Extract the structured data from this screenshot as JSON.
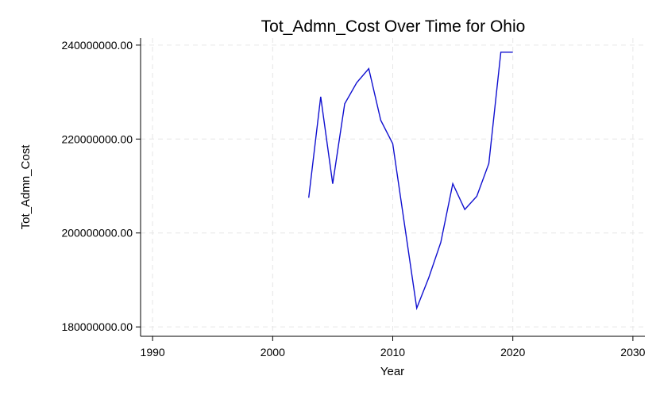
{
  "chart_data": {
    "type": "line",
    "title": "Tot_Admn_Cost Over Time for Ohio",
    "xlabel": "Year",
    "ylabel": "Tot_Admn_Cost",
    "xlim": [
      1989,
      2031
    ],
    "ylim": [
      178000000,
      241500000
    ],
    "xticks": [
      1990,
      2000,
      2010,
      2020,
      2030
    ],
    "yticks": [
      180000000,
      200000000,
      220000000,
      240000000
    ],
    "xtick_labels": [
      "1990",
      "2000",
      "2010",
      "2020",
      "2030"
    ],
    "ytick_labels": [
      "180000000.00",
      "200000000.00",
      "220000000.00",
      "240000000.00"
    ],
    "grid": true,
    "line_color": "#1010d0",
    "series": [
      {
        "x": [
          2003,
          2004,
          2005,
          2006,
          2007,
          2008,
          2009,
          2010,
          2011,
          2012,
          2013,
          2014,
          2015,
          2016,
          2017,
          2018,
          2019,
          2020
        ],
        "values": [
          207500000,
          229000000,
          210500000,
          227500000,
          232000000,
          235000000,
          224000000,
          219000000,
          201500000,
          184000000,
          190500000,
          198000000,
          210500000,
          205000000,
          207800000,
          214800000,
          238500000,
          238500000
        ]
      }
    ]
  }
}
